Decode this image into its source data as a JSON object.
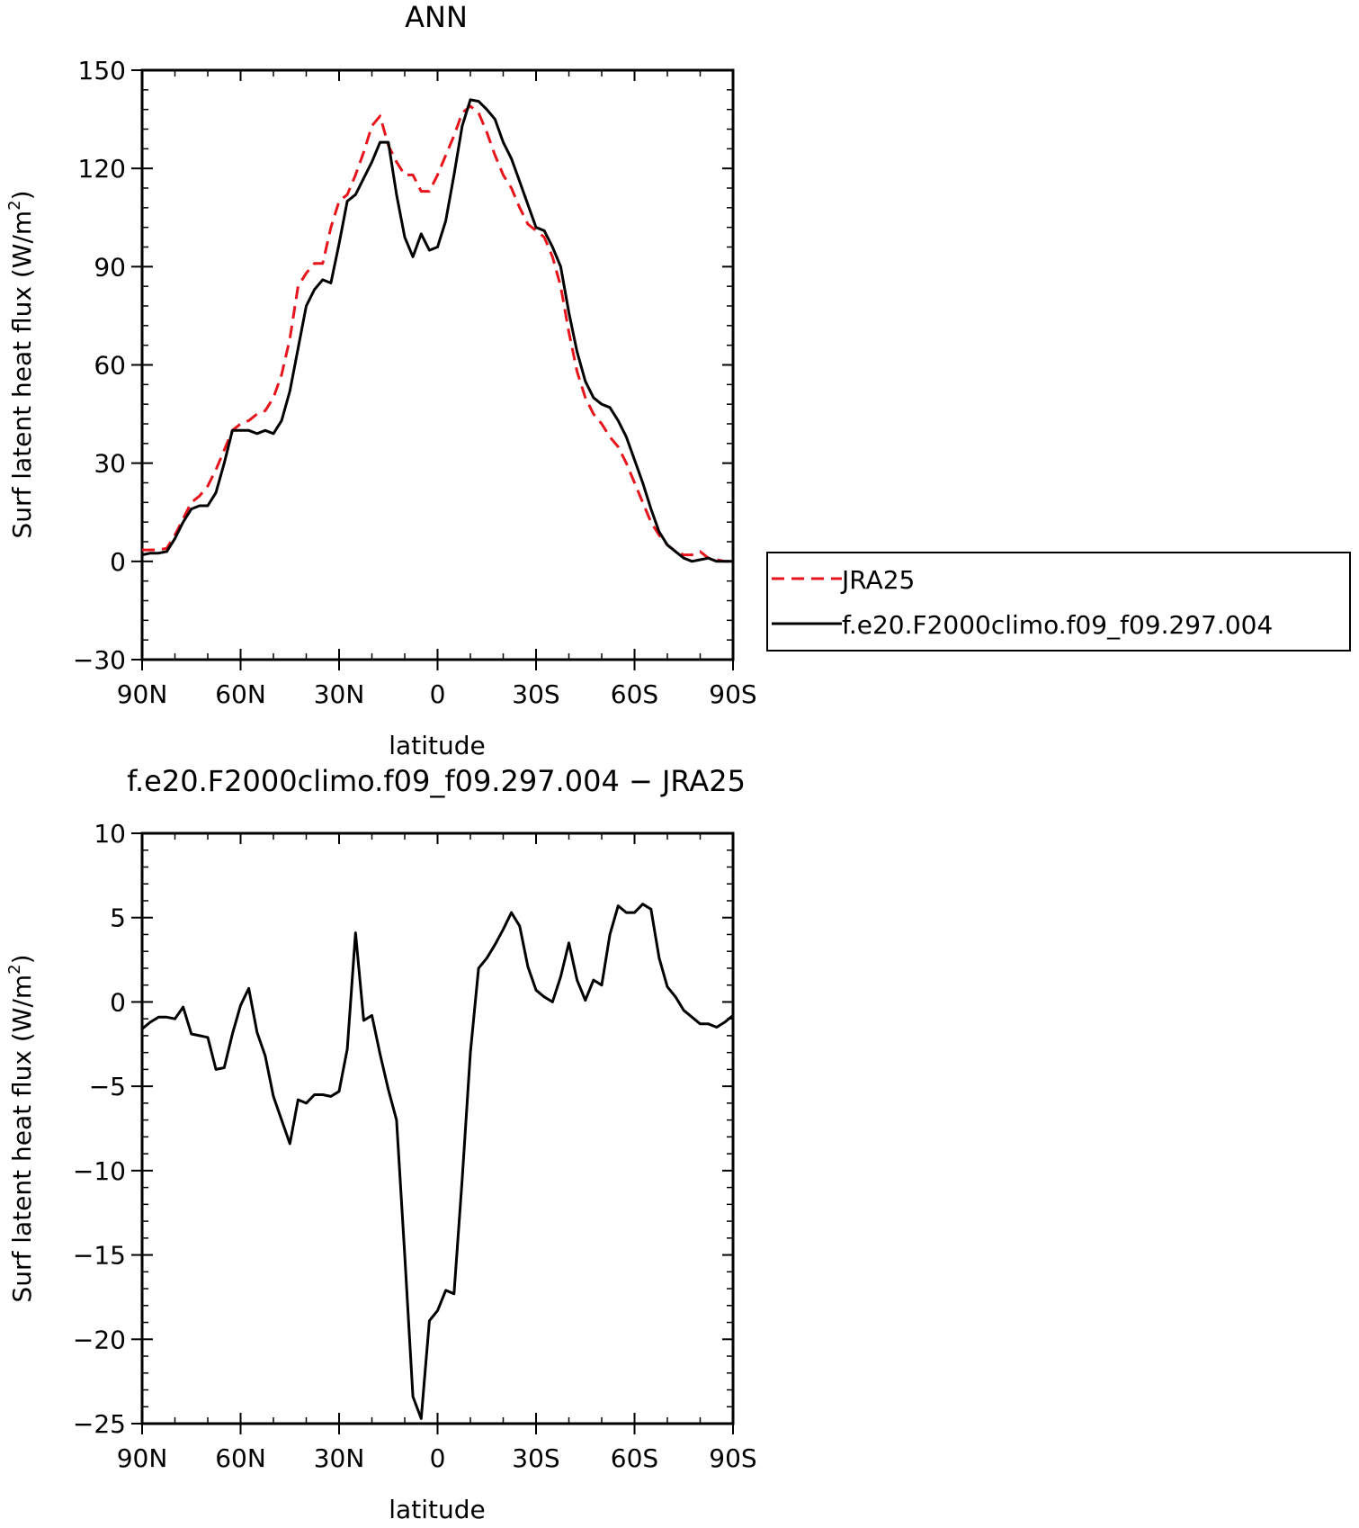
{
  "chart_data": [
    {
      "type": "line",
      "title": "ANN",
      "xlabel": "latitude",
      "ylabel_main": "Surf latent heat flux (W/m",
      "ylabel_sup": "2",
      "ylabel_end": ")",
      "xlim": [
        90,
        -90
      ],
      "ylim": [
        -30,
        150
      ],
      "yticks": [
        -30,
        0,
        30,
        60,
        90,
        120,
        150
      ],
      "ytick_labels": [
        "−30",
        "0",
        "30",
        "60",
        "90",
        "120",
        "150"
      ],
      "xticks": [
        90,
        60,
        30,
        0,
        -30,
        -60,
        -90
      ],
      "xtick_labels": [
        "90N",
        "60N",
        "30N",
        "0",
        "30S",
        "60S",
        "90S"
      ],
      "legend": {
        "placement": "right",
        "entries": [
          {
            "label": "JRA25",
            "style": "dashed",
            "color": "#e8141b"
          },
          {
            "label": "f.e20.F2000climo.f09_f09.297.004",
            "style": "solid",
            "color": "#000000"
          }
        ]
      },
      "series": [
        {
          "name": "JRA25",
          "color": "#e8141b",
          "dash": true,
          "x": [
            90,
            87.5,
            85,
            82.5,
            80,
            77.5,
            75,
            72.5,
            70,
            67.5,
            65,
            62.5,
            60,
            57.5,
            55,
            52.5,
            50,
            47.5,
            45,
            42.5,
            40,
            37.5,
            35,
            32.5,
            30,
            27.5,
            25,
            22.5,
            20,
            17.5,
            15,
            12.5,
            10,
            7.5,
            5,
            2.5,
            0,
            -2.5,
            -5,
            -7.5,
            -10,
            -12.5,
            -15,
            -17.5,
            -20,
            -22.5,
            -25,
            -27.5,
            -30,
            -32.5,
            -35,
            -37.5,
            -40,
            -42.5,
            -45,
            -47.5,
            -50,
            -52.5,
            -55,
            -57.5,
            -60,
            -62.5,
            -65,
            -67.5,
            -70,
            -72.5,
            -75,
            -77.5,
            -80,
            -82.5,
            -85,
            -87.5,
            -90
          ],
          "y": [
            3.5,
            3.5,
            3.5,
            4,
            8,
            13,
            18,
            20,
            23,
            28,
            34,
            40,
            42,
            43,
            45,
            46,
            50,
            57,
            68,
            84,
            88,
            91,
            91,
            102,
            110,
            112,
            118,
            125,
            133,
            136,
            127,
            122,
            118,
            118,
            113,
            113,
            118,
            124,
            130,
            137,
            139,
            137,
            131,
            124,
            118,
            114,
            108,
            103,
            101,
            99,
            93,
            84,
            70,
            58,
            50,
            45,
            42,
            38,
            35,
            30,
            24,
            18,
            12,
            8,
            5,
            3,
            2,
            2,
            3,
            1,
            0.5,
            0,
            0
          ]
        },
        {
          "name": "f.e20.F2000climo.f09_f09.297.004",
          "color": "#000000",
          "dash": false,
          "x": [
            90,
            87.5,
            85,
            82.5,
            80,
            77.5,
            75,
            72.5,
            70,
            67.5,
            65,
            62.5,
            60,
            57.5,
            55,
            52.5,
            50,
            47.5,
            45,
            42.5,
            40,
            37.5,
            35,
            32.5,
            30,
            27.5,
            25,
            22.5,
            20,
            17.5,
            15,
            12.5,
            10,
            7.5,
            5,
            2.5,
            0,
            -2.5,
            -5,
            -7.5,
            -10,
            -12.5,
            -15,
            -17.5,
            -20,
            -22.5,
            -25,
            -27.5,
            -30,
            -32.5,
            -35,
            -37.5,
            -40,
            -42.5,
            -45,
            -47.5,
            -50,
            -52.5,
            -55,
            -57.5,
            -60,
            -62.5,
            -65,
            -67.5,
            -70,
            -72.5,
            -75,
            -77.5,
            -80,
            -82.5,
            -85,
            -87.5,
            -90
          ],
          "y": [
            2,
            2.5,
            2.5,
            3,
            7,
            12,
            16,
            17,
            17,
            21,
            30,
            40,
            40,
            40,
            39,
            40,
            39,
            43,
            52,
            65,
            78,
            83,
            86,
            85,
            97,
            110,
            112,
            117,
            122,
            128,
            128,
            112,
            99,
            93,
            100,
            95,
            96,
            104,
            118,
            133,
            141,
            140.5,
            138,
            135,
            128,
            123,
            116,
            109,
            102,
            101,
            96,
            90,
            76,
            64,
            55,
            50,
            48,
            47,
            43,
            38,
            31,
            24,
            16,
            9,
            5,
            3,
            1,
            0,
            0.5,
            1,
            0,
            0,
            0
          ]
        }
      ]
    },
    {
      "type": "line",
      "title": "f.e20.F2000climo.f09_f09.297.004 − JRA25",
      "xlabel": "latitude",
      "ylabel_main": "Surf latent heat flux (W/m",
      "ylabel_sup": "2",
      "ylabel_end": ")",
      "xlim": [
        90,
        -90
      ],
      "ylim": [
        -25,
        10
      ],
      "yticks": [
        -25,
        -20,
        -15,
        -10,
        -5,
        0,
        5,
        10
      ],
      "ytick_labels": [
        "−25",
        "−20",
        "−15",
        "−10",
        "−5",
        "0",
        "5",
        "10"
      ],
      "xticks": [
        90,
        60,
        30,
        0,
        -30,
        -60,
        -90
      ],
      "xtick_labels": [
        "90N",
        "60N",
        "30N",
        "0",
        "30S",
        "60S",
        "90S"
      ],
      "series": [
        {
          "color": "#000000",
          "dash": false,
          "x": [
            90,
            87.5,
            85,
            82.5,
            80,
            77.5,
            75,
            72.5,
            70,
            67.5,
            65,
            62.5,
            60,
            57.5,
            55,
            52.5,
            50,
            47.5,
            45,
            42.5,
            40,
            37.5,
            35,
            32.5,
            30,
            27.5,
            25,
            22.5,
            20,
            17.5,
            15,
            12.5,
            10,
            7.5,
            5,
            2.5,
            0,
            -2.5,
            -5,
            -7.5,
            -10,
            -12.5,
            -15,
            -17.5,
            -20,
            -22.5,
            -25,
            -27.5,
            -30,
            -32.5,
            -35,
            -37.5,
            -40,
            -42.5,
            -45,
            -47.5,
            -50,
            -52.5,
            -55,
            -57.5,
            -60,
            -62.5,
            -65,
            -67.5,
            -70,
            -72.5,
            -75,
            -77.5,
            -80,
            -82.5,
            -85,
            -87.5,
            -90
          ],
          "y": [
            -1.6,
            -1.2,
            -0.9,
            -0.9,
            -1.0,
            -0.3,
            -1.9,
            -2.0,
            -2.1,
            -4.0,
            -3.9,
            -1.9,
            -0.2,
            0.8,
            -1.8,
            -3.2,
            -5.6,
            -7.0,
            -8.4,
            -5.8,
            -6.0,
            -5.5,
            -5.5,
            -5.6,
            -5.3,
            -2.8,
            4.1,
            -1.1,
            -0.8,
            -3.1,
            -5.2,
            -7.0,
            -15.0,
            -23.4,
            -24.7,
            -18.9,
            -18.3,
            -17.1,
            -17.3,
            -10.5,
            -3.0,
            2.0,
            2.6,
            3.4,
            4.3,
            5.3,
            4.5,
            2.1,
            0.7,
            0.3,
            0.0,
            1.5,
            3.5,
            1.3,
            0.1,
            1.3,
            1.0,
            4.0,
            5.7,
            5.3,
            5.3,
            5.8,
            5.5,
            2.6,
            0.9,
            0.3,
            -0.5,
            -0.9,
            -1.3,
            -1.3,
            -1.5,
            -1.2,
            -0.8
          ]
        }
      ]
    }
  ]
}
